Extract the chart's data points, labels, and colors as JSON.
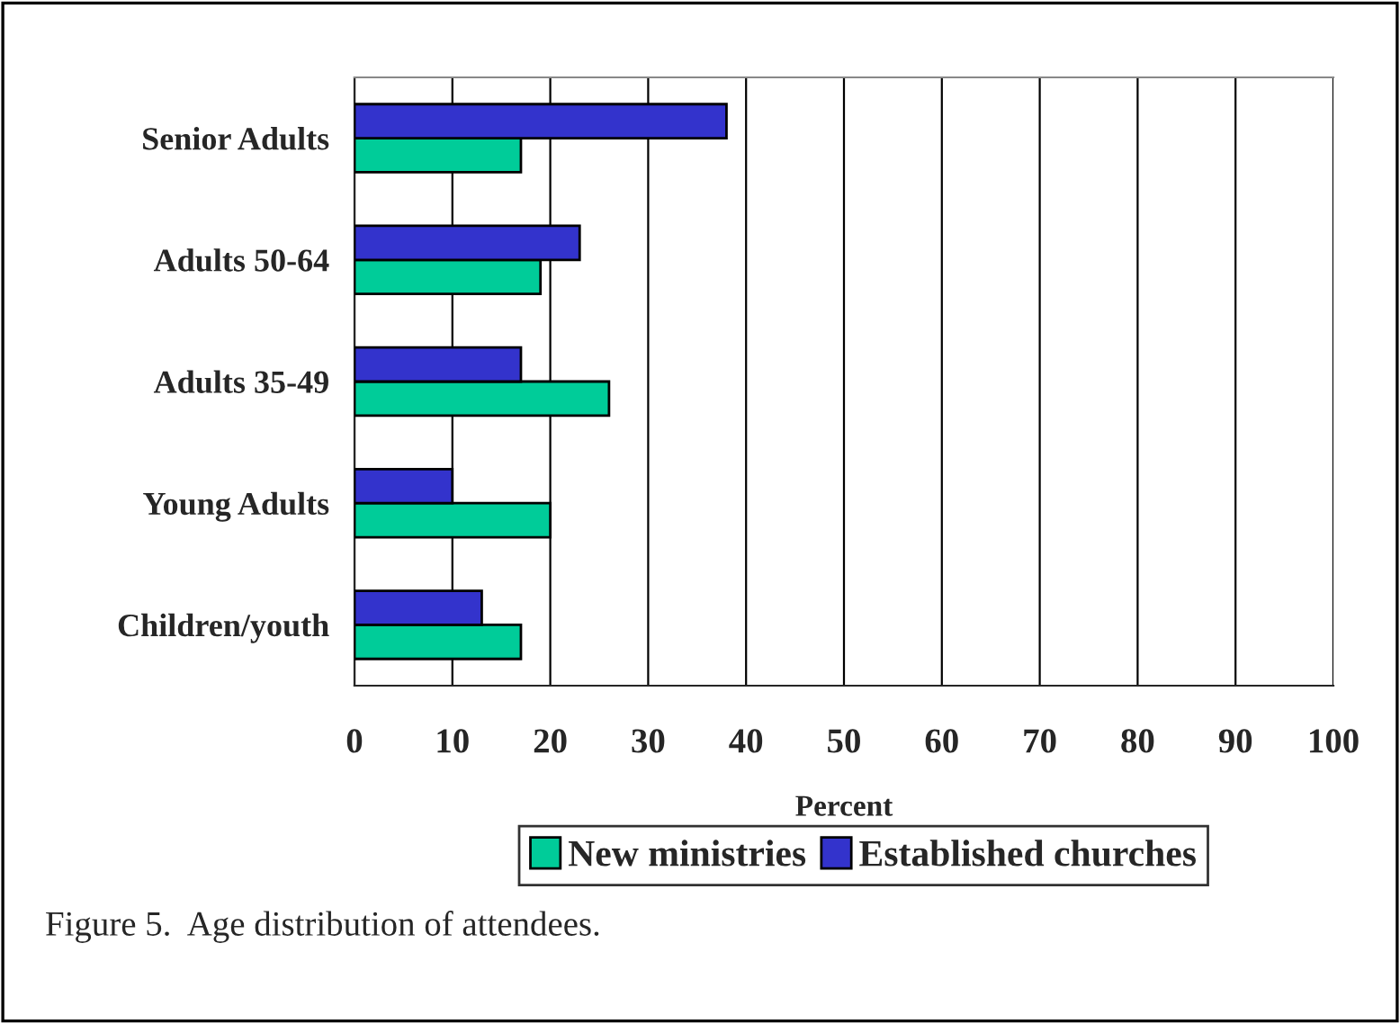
{
  "chart_data": {
    "type": "bar",
    "orientation": "horizontal",
    "xlabel": "Percent",
    "categories": [
      "Senior Adults",
      "Adults 50-64",
      "Adults 35-49",
      "Young Adults",
      "Children/youth"
    ],
    "series": [
      {
        "name": "New ministries",
        "color": "#00cc99",
        "values": [
          17,
          19,
          26,
          20,
          17
        ]
      },
      {
        "name": "Established churches",
        "color": "#3333cc",
        "values": [
          38,
          23,
          17,
          10,
          13
        ]
      }
    ],
    "xlim": [
      0,
      100
    ],
    "xticks": [
      0,
      10,
      20,
      30,
      40,
      50,
      60,
      70,
      80,
      90,
      100
    ],
    "grid": "x",
    "legend": "bottom",
    "annotations": [
      "Figure 5.  Age distribution of attendees."
    ]
  }
}
